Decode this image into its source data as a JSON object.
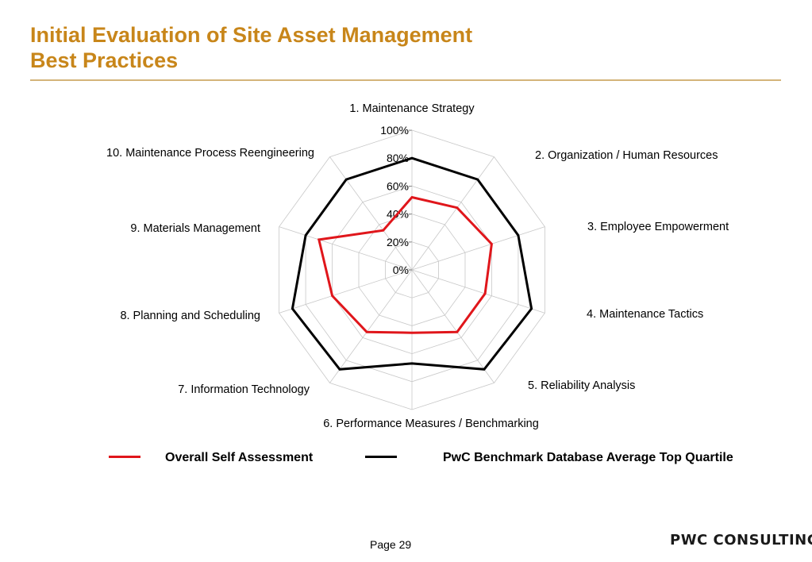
{
  "header": {
    "title_line1": "Initial Evaluation of Site Asset Management",
    "title_line2": "Best Practices"
  },
  "chart_data": {
    "type": "radar",
    "categories": [
      "1.  Maintenance Strategy",
      "2.  Organization / Human Resources",
      "3.  Employee Empowerment",
      "4.  Maintenance Tactics",
      "5.  Reliability Analysis",
      "6.  Performance Measures / Benchmarking",
      "7.  Information Technology",
      "8.  Planning and Scheduling",
      "9.  Materials Management",
      "10.  Maintenance Process Reengineering"
    ],
    "tick_labels": [
      "0%",
      "20%",
      "40%",
      "60%",
      "80%",
      "100%"
    ],
    "rlim": [
      0,
      100
    ],
    "grid": true,
    "legend_position": "bottom",
    "series": [
      {
        "name": "Overall Self Assessment",
        "color": "#e0161b",
        "values": [
          52,
          55,
          60,
          55,
          55,
          45,
          55,
          60,
          70,
          35
        ]
      },
      {
        "name": "PwC Benchmark Database Average Top Quartile",
        "color": "#000000",
        "values": [
          80,
          80,
          80,
          90,
          88,
          67,
          88,
          90,
          80,
          80
        ]
      }
    ]
  },
  "footer": {
    "page": "Page 29",
    "logo": "PWC CONSULTING"
  }
}
